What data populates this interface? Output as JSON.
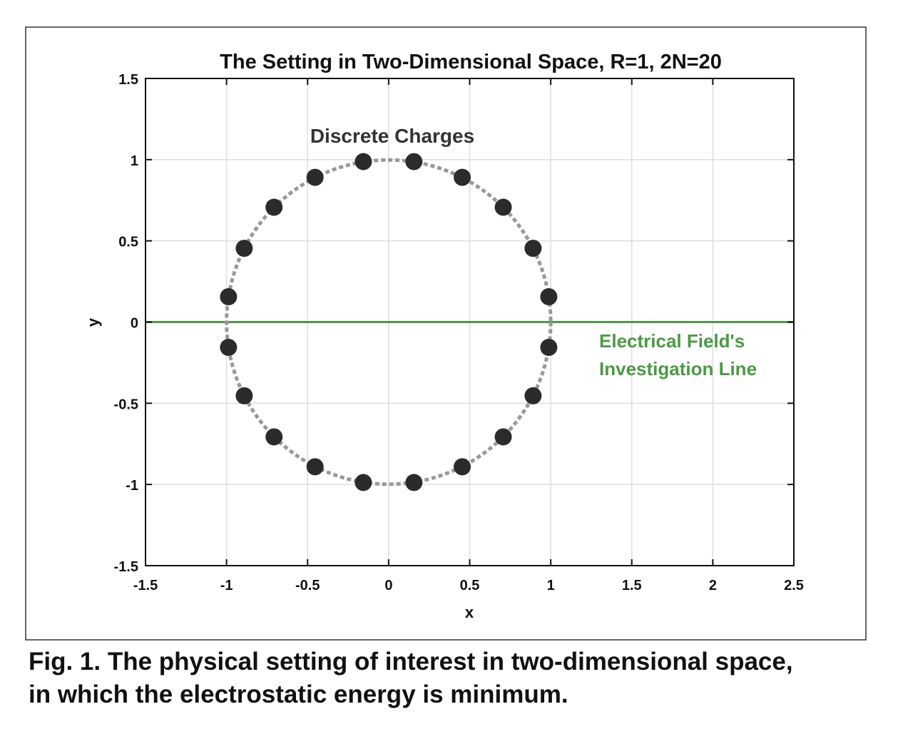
{
  "chart_data": {
    "type": "scatter",
    "title": "The Setting in Two-Dimensional Space, R=1, 2N=20",
    "xlabel": "x",
    "ylabel": "y",
    "xlim": [
      -1.5,
      2.5
    ],
    "ylim": [
      -1.5,
      1.5
    ],
    "grid": true,
    "xticks": [
      -1.5,
      -1,
      -0.5,
      0,
      0.5,
      1,
      1.5,
      2,
      2.5
    ],
    "xtick_labels": [
      "-1.5",
      "-1",
      "-0.5",
      "0",
      "0.5",
      "1",
      "1.5",
      "2",
      "2.5"
    ],
    "yticks": [
      -1.5,
      -1,
      -0.5,
      0,
      0.5,
      1,
      1.5
    ],
    "ytick_labels": [
      "-1.5",
      "-1",
      "-0.5",
      "0",
      "0.5",
      "1",
      "1.5"
    ],
    "circle": {
      "radius": 1,
      "center": [
        0,
        0
      ],
      "style": "dotted",
      "color": "#999999"
    },
    "charges": {
      "count": 20,
      "color": "#2b2b2b",
      "points": [
        [
          0.988,
          0.156
        ],
        [
          0.891,
          0.454
        ],
        [
          0.707,
          0.707
        ],
        [
          0.454,
          0.891
        ],
        [
          0.156,
          0.988
        ],
        [
          -0.156,
          0.988
        ],
        [
          -0.454,
          0.891
        ],
        [
          -0.707,
          0.707
        ],
        [
          -0.891,
          0.454
        ],
        [
          -0.988,
          0.156
        ],
        [
          -0.988,
          -0.156
        ],
        [
          -0.891,
          -0.454
        ],
        [
          -0.707,
          -0.707
        ],
        [
          -0.454,
          -0.891
        ],
        [
          -0.156,
          -0.988
        ],
        [
          0.156,
          -0.988
        ],
        [
          0.454,
          -0.891
        ],
        [
          0.707,
          -0.707
        ],
        [
          0.891,
          -0.454
        ],
        [
          0.988,
          -0.156
        ]
      ]
    },
    "investigation_line": {
      "y": 0,
      "color": "#4a9a45"
    },
    "annotations": {
      "charges_label": "Discrete Charges",
      "line_label_1": "Electrical Field's",
      "line_label_2": "Investigation Line"
    }
  },
  "caption": {
    "line1": "Fig. 1. The physical setting of interest in two-dimensional space,",
    "line2": "in which the electrostatic energy is minimum."
  }
}
